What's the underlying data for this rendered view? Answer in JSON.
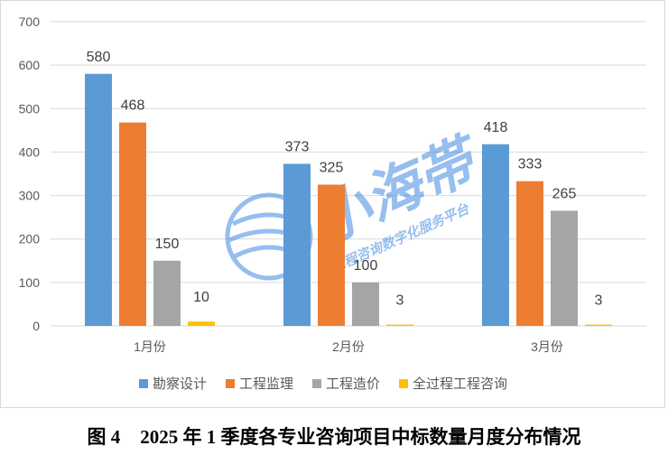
{
  "caption": {
    "figure_number": "图 4",
    "text": "2025 年 1 季度各专业咨询项目中标数量月度分布情况"
  },
  "watermark": {
    "brand_text": "小海帯",
    "sub_text": "工程咨询数字化服务平台"
  },
  "colors": {
    "series": [
      "#5b9bd5",
      "#ed7d31",
      "#a5a5a5",
      "#ffc000"
    ],
    "gridline": "#d9d9d9",
    "watermark": "#2f7fe0"
  },
  "chart_data": {
    "type": "bar",
    "title": "",
    "xlabel": "",
    "ylabel": "",
    "ylim": [
      0,
      700
    ],
    "yticks": [
      0,
      100,
      200,
      300,
      400,
      500,
      600,
      700
    ],
    "grid": true,
    "legend_position": "bottom",
    "categories": [
      "1月份",
      "2月份",
      "3月份"
    ],
    "series": [
      {
        "name": "勘察设计",
        "values": [
          580,
          373,
          418
        ]
      },
      {
        "name": "工程监理",
        "values": [
          468,
          325,
          333
        ]
      },
      {
        "name": "工程造价",
        "values": [
          150,
          100,
          265
        ]
      },
      {
        "name": "全过程工程咨询",
        "values": [
          10,
          3,
          3
        ]
      }
    ]
  }
}
